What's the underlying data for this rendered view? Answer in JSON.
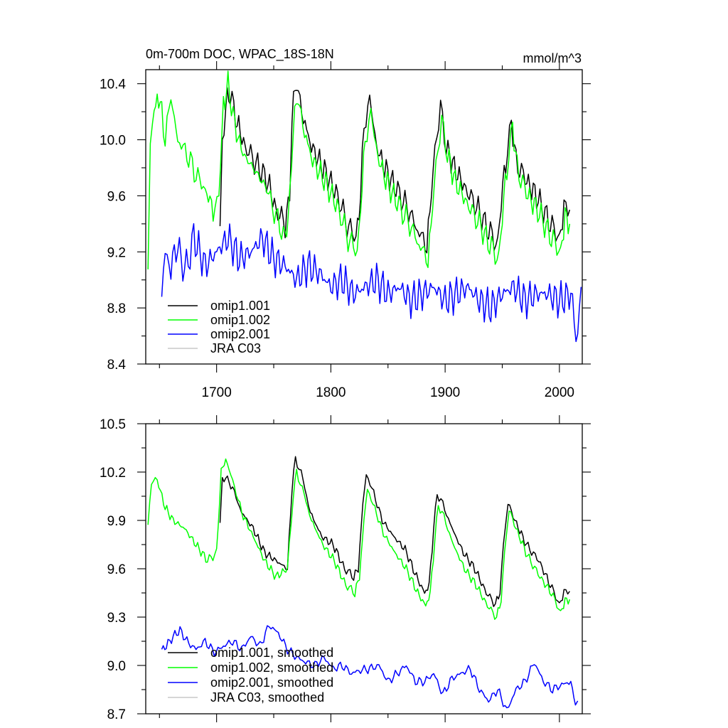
{
  "chart_data": [
    {
      "type": "line",
      "title": "0m-700m DOC, WPAC_18S-18N",
      "units": "mmol/m^3",
      "xlim": [
        1638,
        2020
      ],
      "ylim": [
        8.4,
        10.5
      ],
      "x_ticks": [
        1700,
        1800,
        1900,
        2000
      ],
      "x_tick_labels": [
        "1700",
        "1800",
        "1900",
        "2000"
      ],
      "y_ticks": [
        8.4,
        8.8,
        9.2,
        9.6,
        10.0,
        10.4
      ],
      "y_tick_labels": [
        "8.4",
        "8.8",
        "9.2",
        "9.6",
        "10.0",
        "10.4"
      ],
      "legend": {
        "placement": "bottom-left",
        "entries": [
          "omip1.001",
          "omip1.002",
          "omip2.001",
          "JRA C03"
        ]
      },
      "series": [
        {
          "name": "omip1.001",
          "color": "#000000",
          "x": [
            1703,
            1705,
            1708,
            1712,
            1718,
            1725,
            1733,
            1745,
            1752,
            1760,
            1764,
            1766,
            1770,
            1776,
            1783,
            1793,
            1806,
            1814,
            1822,
            1826,
            1829,
            1834,
            1840,
            1847,
            1857,
            1868,
            1876,
            1884,
            1888,
            1891,
            1896,
            1901,
            1908,
            1918,
            1929,
            1938,
            1946,
            1949,
            1953,
            1958,
            1962,
            1970,
            1980,
            1992,
            2000,
            2004,
            2009
          ],
          "values": [
            9.3,
            9.95,
            10.25,
            10.33,
            10.12,
            9.95,
            9.85,
            9.7,
            9.5,
            9.4,
            9.6,
            10.2,
            10.4,
            10.15,
            9.95,
            9.8,
            9.6,
            9.4,
            9.3,
            9.6,
            10.1,
            10.3,
            9.95,
            9.8,
            9.65,
            9.5,
            9.35,
            9.25,
            9.6,
            9.95,
            10.22,
            9.95,
            9.8,
            9.65,
            9.5,
            9.35,
            9.25,
            9.55,
            9.85,
            10.12,
            9.85,
            9.72,
            9.6,
            9.4,
            9.3,
            9.5,
            9.5
          ]
        },
        {
          "name": "omip1.002",
          "color": "#00ff00",
          "x": [
            1640,
            1642,
            1644,
            1648,
            1652,
            1655,
            1660,
            1666,
            1674,
            1682,
            1690,
            1697,
            1702,
            1706,
            1710,
            1716,
            1723,
            1732,
            1744,
            1752,
            1760,
            1764,
            1767,
            1771,
            1777,
            1784,
            1794,
            1807,
            1815,
            1823,
            1826,
            1830,
            1835,
            1841,
            1848,
            1858,
            1869,
            1877,
            1885,
            1889,
            1892,
            1897,
            1902,
            1909,
            1919,
            1930,
            1939,
            1947,
            1950,
            1954,
            1959,
            1963,
            1971,
            1981,
            1993,
            2001,
            2005,
            2009
          ],
          "values": [
            9.0,
            9.95,
            10.1,
            10.32,
            10.2,
            10.0,
            10.3,
            10.0,
            9.9,
            9.75,
            9.65,
            9.5,
            9.6,
            10.25,
            10.4,
            10.1,
            9.9,
            9.8,
            9.65,
            9.45,
            9.3,
            9.55,
            10.1,
            10.3,
            10.05,
            9.85,
            9.72,
            9.5,
            9.3,
            9.2,
            9.5,
            10.0,
            10.2,
            9.88,
            9.72,
            9.55,
            9.4,
            9.25,
            9.15,
            9.5,
            9.85,
            10.12,
            9.9,
            9.7,
            9.55,
            9.4,
            9.25,
            9.15,
            9.45,
            9.8,
            10.1,
            9.8,
            9.62,
            9.5,
            9.3,
            9.2,
            9.45,
            9.4
          ]
        },
        {
          "name": "omip2.001",
          "color": "#0000ff",
          "x": [
            1652,
            1655,
            1660,
            1666,
            1672,
            1680,
            1690,
            1700,
            1710,
            1720,
            1730,
            1740,
            1750,
            1760,
            1770,
            1780,
            1790,
            1800,
            1810,
            1820,
            1830,
            1840,
            1850,
            1860,
            1870,
            1880,
            1890,
            1900,
            1910,
            1920,
            1930,
            1940,
            1950,
            1960,
            1970,
            1980,
            1990,
            2000,
            2010,
            2016,
            2019
          ],
          "values": [
            8.88,
            9.2,
            9.1,
            9.25,
            9.05,
            9.3,
            9.1,
            9.2,
            9.3,
            9.15,
            9.2,
            9.3,
            9.15,
            9.1,
            9.0,
            9.1,
            9.05,
            8.95,
            9.0,
            8.9,
            8.95,
            9.0,
            8.9,
            8.95,
            8.85,
            8.9,
            8.95,
            8.85,
            8.9,
            8.95,
            8.85,
            8.8,
            8.9,
            8.95,
            8.85,
            8.9,
            8.9,
            8.85,
            8.9,
            8.55,
            8.95
          ]
        },
        {
          "name": "JRA C03",
          "color": "#c8c8c8",
          "x": [],
          "values": []
        }
      ]
    },
    {
      "type": "line",
      "title": "",
      "xlim": [
        1638,
        2020
      ],
      "ylim": [
        8.7,
        10.5
      ],
      "x_ticks": [
        1700,
        1800,
        1900,
        2000
      ],
      "y_ticks": [
        8.7,
        9.0,
        9.3,
        9.6,
        9.9,
        10.2,
        10.5
      ],
      "y_tick_labels": [
        "8.7",
        "9.0",
        "9.3",
        "9.6",
        "9.9",
        "10.2",
        "10.5"
      ],
      "legend": {
        "placement": "bottom-left",
        "entries": [
          "omip1.001, smoothed",
          "omip1.002, smoothed",
          "omip2.001, smoothed",
          "JRA C03, smoothed"
        ]
      },
      "series": [
        {
          "name": "omip1.001, smoothed",
          "color": "#000000",
          "x": [
            1703,
            1705,
            1708,
            1714,
            1722,
            1732,
            1742,
            1752,
            1762,
            1766,
            1769,
            1774,
            1782,
            1792,
            1802,
            1812,
            1820,
            1824,
            1828,
            1831,
            1836,
            1845,
            1855,
            1865,
            1875,
            1882,
            1886,
            1890,
            1893,
            1898,
            1906,
            1916,
            1926,
            1936,
            1944,
            1948,
            1951,
            1955,
            1961,
            1971,
            1982,
            1992,
            2000,
            2004,
            2009
          ],
          "values": [
            9.86,
            10.15,
            10.17,
            10.1,
            9.95,
            9.85,
            9.7,
            9.65,
            9.6,
            10.1,
            10.28,
            10.2,
            9.95,
            9.8,
            9.75,
            9.6,
            9.55,
            9.6,
            10.0,
            10.19,
            10.1,
            9.9,
            9.8,
            9.72,
            9.55,
            9.45,
            9.5,
            9.85,
            10.07,
            10.0,
            9.85,
            9.7,
            9.6,
            9.45,
            9.38,
            9.45,
            9.75,
            10.01,
            9.9,
            9.75,
            9.65,
            9.5,
            9.38,
            9.45,
            9.46
          ]
        },
        {
          "name": "omip1.002, smoothed",
          "color": "#00ff00",
          "x": [
            1640,
            1643,
            1648,
            1655,
            1662,
            1672,
            1682,
            1692,
            1700,
            1704,
            1708,
            1714,
            1722,
            1732,
            1742,
            1752,
            1762,
            1767,
            1770,
            1775,
            1783,
            1793,
            1803,
            1813,
            1821,
            1825,
            1829,
            1832,
            1837,
            1846,
            1856,
            1866,
            1876,
            1883,
            1887,
            1891,
            1894,
            1899,
            1907,
            1917,
            1927,
            1937,
            1945,
            1949,
            1952,
            1956,
            1962,
            1972,
            1983,
            1993,
            2001,
            2005,
            2009
          ],
          "values": [
            9.85,
            10.15,
            10.15,
            9.98,
            9.9,
            9.85,
            9.75,
            9.65,
            9.7,
            10.2,
            10.28,
            10.15,
            9.95,
            9.8,
            9.65,
            9.55,
            9.6,
            10.05,
            10.2,
            10.1,
            9.9,
            9.75,
            9.65,
            9.5,
            9.45,
            9.55,
            9.9,
            10.1,
            10.0,
            9.82,
            9.7,
            9.6,
            9.45,
            9.37,
            9.45,
            9.78,
            10.0,
            9.92,
            9.75,
            9.6,
            9.5,
            9.37,
            9.3,
            9.4,
            9.7,
            9.97,
            9.85,
            9.68,
            9.55,
            9.45,
            9.33,
            9.4,
            9.41
          ]
        },
        {
          "name": "omip2.001, smoothed",
          "color": "#0000ff",
          "x": [
            1652,
            1656,
            1662,
            1668,
            1674,
            1682,
            1690,
            1698,
            1706,
            1714,
            1722,
            1730,
            1738,
            1746,
            1754,
            1762,
            1770,
            1778,
            1786,
            1794,
            1802,
            1810,
            1818,
            1826,
            1834,
            1842,
            1850,
            1858,
            1866,
            1874,
            1882,
            1890,
            1898,
            1906,
            1914,
            1922,
            1930,
            1938,
            1946,
            1954,
            1962,
            1970,
            1978,
            1986,
            1994,
            2002,
            2010,
            2014,
            2016
          ],
          "values": [
            9.1,
            9.12,
            9.18,
            9.22,
            9.15,
            9.1,
            9.15,
            9.08,
            9.12,
            9.15,
            9.1,
            9.18,
            9.12,
            9.25,
            9.2,
            9.1,
            9.05,
            9.02,
            9.0,
            9.05,
            8.98,
            9.0,
            8.95,
            8.97,
            8.98,
            9.0,
            8.9,
            8.95,
            9.0,
            8.9,
            8.9,
            8.95,
            8.82,
            8.92,
            8.95,
            8.98,
            8.85,
            8.78,
            8.85,
            8.72,
            8.85,
            8.9,
            9.02,
            8.9,
            8.85,
            8.88,
            8.9,
            8.75,
            8.78
          ]
        },
        {
          "name": "JRA C03, smoothed",
          "color": "#c8c8c8",
          "x": [],
          "values": []
        }
      ]
    }
  ]
}
